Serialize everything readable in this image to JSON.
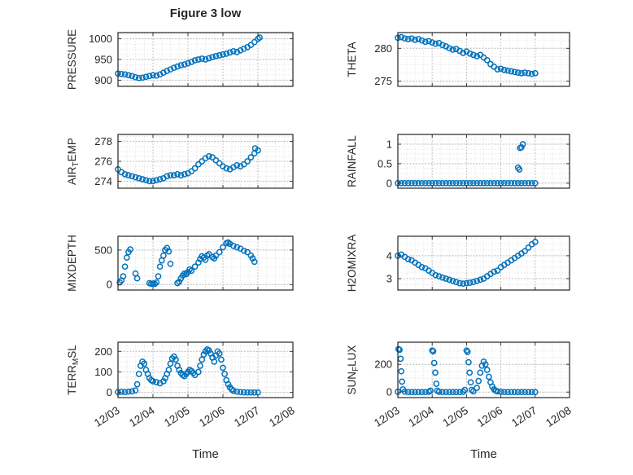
{
  "figure": {
    "title": "Figure 3 low",
    "xlabel": "Time",
    "marker_color": "#0072BD",
    "axes_color": "#262626",
    "x_tick_labels": [
      "12/03",
      "12/04",
      "12/05",
      "12/06",
      "12/07",
      "12/08"
    ],
    "xlim_days": [
      3,
      8
    ],
    "grid": "dotted major and minor, box on",
    "marker": "hollow circle"
  },
  "chart_data": [
    {
      "type": "scatter",
      "name": "PRESSURE",
      "ylabel": {
        "pre": "PRESSURE",
        "sub": "",
        "post": ""
      },
      "ylim": [
        885,
        1015
      ],
      "yticks": [
        900,
        950,
        1000
      ],
      "x_start": 3.0,
      "x_step": 0.1,
      "y": [
        916,
        915,
        914,
        912,
        910,
        907,
        905,
        906,
        908,
        910,
        912,
        911,
        914,
        918,
        922,
        926,
        930,
        933,
        936,
        938,
        941,
        944,
        948,
        950,
        952,
        950,
        953,
        956,
        958,
        960,
        962,
        964,
        967,
        970,
        968,
        972,
        976,
        980,
        985,
        992,
        1000
      ],
      "extra_points": [
        [
          7.05,
          1003
        ]
      ]
    },
    {
      "type": "scatter",
      "name": "THETA",
      "ylabel": {
        "pre": "THETA",
        "sub": "",
        "post": ""
      },
      "ylim": [
        274.2,
        282.4
      ],
      "yticks": [
        275,
        280
      ],
      "x_start": 3.0,
      "x_step": 0.1,
      "y": [
        281.6,
        281.7,
        281.5,
        281.4,
        281.5,
        281.3,
        281.4,
        281.2,
        281.0,
        281.1,
        280.9,
        280.7,
        280.8,
        280.5,
        280.3,
        280.0,
        279.8,
        279.9,
        279.6,
        279.3,
        279.5,
        279.2,
        279.0,
        278.8,
        279.0,
        278.6,
        278.2,
        277.6,
        277.2,
        276.8,
        276.9,
        276.7,
        276.6,
        276.5,
        276.4,
        276.3,
        276.2,
        276.3,
        276.2,
        276.1,
        276.2
      ]
    },
    {
      "type": "scatter",
      "name": "AIR_TEMP",
      "ylabel": {
        "pre": "AIR",
        "sub": "T",
        "post": "EMP"
      },
      "ylim": [
        273.3,
        278.7
      ],
      "yticks": [
        274,
        276,
        278
      ],
      "x_start": 3.0,
      "x_step": 0.1,
      "y": [
        275.2,
        274.9,
        274.7,
        274.6,
        274.5,
        274.4,
        274.3,
        274.2,
        274.1,
        274.0,
        274.0,
        274.1,
        274.2,
        274.3,
        274.5,
        274.6,
        274.6,
        274.7,
        274.6,
        274.7,
        274.8,
        275.0,
        275.3,
        275.7,
        276.0,
        276.3,
        276.5,
        276.4,
        276.1,
        275.8,
        275.5,
        275.3,
        275.2,
        275.4,
        275.6,
        275.5,
        275.7,
        276.0,
        276.4,
        276.8,
        277.1
      ],
      "extra_points": [
        [
          6.92,
          277.3
        ]
      ]
    },
    {
      "type": "scatter",
      "name": "RAINFALL",
      "ylabel": {
        "pre": "RAINFALL",
        "sub": "",
        "post": ""
      },
      "ylim": [
        -0.13,
        1.25
      ],
      "yticks": [
        0,
        0.5,
        1
      ],
      "x_start": 3.0,
      "x_step": 0.1,
      "y": [
        0,
        0,
        0,
        0,
        0,
        0,
        0,
        0,
        0,
        0,
        0,
        0,
        0,
        0,
        0,
        0,
        0,
        0,
        0,
        0,
        0,
        0,
        0,
        0,
        0,
        0,
        0,
        0,
        0,
        0,
        0,
        0,
        0,
        0,
        0,
        0,
        0,
        0,
        0,
        0,
        0
      ],
      "extra_points": [
        [
          6.5,
          0.4
        ],
        [
          6.54,
          0.35
        ],
        [
          6.56,
          0.9
        ],
        [
          6.6,
          0.92
        ],
        [
          6.64,
          1.0
        ]
      ]
    },
    {
      "type": "scatter",
      "name": "MIXDEPTH",
      "ylabel": {
        "pre": "MIXDEPTH",
        "sub": "",
        "post": ""
      },
      "ylim": [
        -80,
        700
      ],
      "yticks": [
        0,
        500
      ],
      "points": [
        [
          3.05,
          30
        ],
        [
          3.1,
          60
        ],
        [
          3.15,
          120
        ],
        [
          3.2,
          260
        ],
        [
          3.25,
          390
        ],
        [
          3.3,
          470
        ],
        [
          3.35,
          510
        ],
        [
          3.5,
          160
        ],
        [
          3.55,
          90
        ],
        [
          3.9,
          20
        ],
        [
          3.95,
          10
        ],
        [
          4.0,
          15
        ],
        [
          4.05,
          10
        ],
        [
          4.1,
          30
        ],
        [
          4.15,
          120
        ],
        [
          4.2,
          260
        ],
        [
          4.25,
          350
        ],
        [
          4.3,
          420
        ],
        [
          4.35,
          500
        ],
        [
          4.4,
          530
        ],
        [
          4.45,
          480
        ],
        [
          4.5,
          300
        ],
        [
          4.7,
          20
        ],
        [
          4.75,
          40
        ],
        [
          4.8,
          90
        ],
        [
          4.85,
          130
        ],
        [
          4.9,
          160
        ],
        [
          4.95,
          150
        ],
        [
          5.0,
          180
        ],
        [
          5.05,
          220
        ],
        [
          5.1,
          200
        ],
        [
          5.2,
          260
        ],
        [
          5.3,
          320
        ],
        [
          5.35,
          370
        ],
        [
          5.4,
          410
        ],
        [
          5.45,
          390
        ],
        [
          5.5,
          360
        ],
        [
          5.55,
          420
        ],
        [
          5.6,
          440
        ],
        [
          5.7,
          400
        ],
        [
          5.75,
          380
        ],
        [
          5.8,
          420
        ],
        [
          5.9,
          470
        ],
        [
          6.0,
          540
        ],
        [
          6.1,
          600
        ],
        [
          6.15,
          610
        ],
        [
          6.2,
          590
        ],
        [
          6.3,
          560
        ],
        [
          6.4,
          540
        ],
        [
          6.5,
          520
        ],
        [
          6.6,
          490
        ],
        [
          6.7,
          470
        ],
        [
          6.8,
          420
        ],
        [
          6.85,
          380
        ],
        [
          6.9,
          330
        ]
      ]
    },
    {
      "type": "scatter",
      "name": "H2OMIXRA",
      "ylabel": {
        "pre": "H2OMIXRA",
        "sub": "",
        "post": ""
      },
      "ylim": [
        2.5,
        4.85
      ],
      "yticks": [
        3,
        4
      ],
      "x_start": 3.0,
      "x_step": 0.1,
      "y": [
        4.0,
        4.05,
        3.95,
        3.85,
        3.8,
        3.7,
        3.6,
        3.5,
        3.45,
        3.35,
        3.25,
        3.15,
        3.1,
        3.05,
        3.0,
        2.95,
        2.9,
        2.85,
        2.8,
        2.78,
        2.8,
        2.82,
        2.85,
        2.9,
        2.95,
        3.0,
        3.1,
        3.2,
        3.3,
        3.35,
        3.5,
        3.6,
        3.7,
        3.8,
        3.9,
        4.0,
        4.1,
        4.2,
        4.35,
        4.5,
        4.6
      ]
    },
    {
      "type": "scatter",
      "name": "TERR_MSL",
      "ylabel": {
        "pre": "TERR",
        "sub": "M",
        "post": "SL"
      },
      "ylim": [
        -25,
        245
      ],
      "yticks": [
        0,
        100,
        200
      ],
      "points": [
        [
          3.0,
          2
        ],
        [
          3.1,
          3
        ],
        [
          3.2,
          2
        ],
        [
          3.3,
          4
        ],
        [
          3.4,
          5
        ],
        [
          3.5,
          10
        ],
        [
          3.55,
          40
        ],
        [
          3.6,
          90
        ],
        [
          3.65,
          130
        ],
        [
          3.7,
          150
        ],
        [
          3.75,
          140
        ],
        [
          3.8,
          110
        ],
        [
          3.85,
          90
        ],
        [
          3.9,
          70
        ],
        [
          3.95,
          60
        ],
        [
          4.0,
          55
        ],
        [
          4.1,
          50
        ],
        [
          4.2,
          45
        ],
        [
          4.3,
          55
        ],
        [
          4.35,
          70
        ],
        [
          4.4,
          90
        ],
        [
          4.45,
          110
        ],
        [
          4.5,
          140
        ],
        [
          4.55,
          165
        ],
        [
          4.6,
          175
        ],
        [
          4.65,
          160
        ],
        [
          4.7,
          130
        ],
        [
          4.75,
          110
        ],
        [
          4.8,
          95
        ],
        [
          4.85,
          85
        ],
        [
          4.9,
          80
        ],
        [
          4.95,
          90
        ],
        [
          5.0,
          100
        ],
        [
          5.05,
          110
        ],
        [
          5.1,
          105
        ],
        [
          5.15,
          95
        ],
        [
          5.2,
          85
        ],
        [
          5.3,
          100
        ],
        [
          5.35,
          130
        ],
        [
          5.4,
          160
        ],
        [
          5.45,
          185
        ],
        [
          5.5,
          200
        ],
        [
          5.55,
          210
        ],
        [
          5.6,
          205
        ],
        [
          5.65,
          190
        ],
        [
          5.7,
          170
        ],
        [
          5.75,
          150
        ],
        [
          5.8,
          180
        ],
        [
          5.85,
          200
        ],
        [
          5.9,
          190
        ],
        [
          5.95,
          160
        ],
        [
          6.0,
          120
        ],
        [
          6.05,
          90
        ],
        [
          6.1,
          60
        ],
        [
          6.15,
          40
        ],
        [
          6.2,
          25
        ],
        [
          6.25,
          15
        ],
        [
          6.3,
          8
        ],
        [
          6.4,
          4
        ],
        [
          6.5,
          2
        ],
        [
          6.6,
          1
        ],
        [
          6.7,
          0
        ],
        [
          6.8,
          0
        ],
        [
          6.9,
          0
        ],
        [
          7.0,
          0
        ]
      ]
    },
    {
      "type": "scatter",
      "name": "SUN_FLUX",
      "ylabel": {
        "pre": "SUN",
        "sub": "F",
        "post": "LUX"
      },
      "ylim": [
        -40,
        360
      ],
      "yticks": [
        0,
        200
      ],
      "points": [
        [
          3.0,
          2
        ],
        [
          3.02,
          310
        ],
        [
          3.05,
          305
        ],
        [
          3.08,
          240
        ],
        [
          3.1,
          150
        ],
        [
          3.12,
          75
        ],
        [
          3.15,
          20
        ],
        [
          3.2,
          3
        ],
        [
          3.3,
          0
        ],
        [
          3.4,
          0
        ],
        [
          3.5,
          0
        ],
        [
          3.6,
          0
        ],
        [
          3.7,
          0
        ],
        [
          3.8,
          0
        ],
        [
          3.9,
          2
        ],
        [
          3.95,
          10
        ],
        [
          4.0,
          300
        ],
        [
          4.03,
          295
        ],
        [
          4.06,
          210
        ],
        [
          4.09,
          140
        ],
        [
          4.12,
          60
        ],
        [
          4.15,
          10
        ],
        [
          4.2,
          2
        ],
        [
          4.3,
          0
        ],
        [
          4.4,
          0
        ],
        [
          4.5,
          0
        ],
        [
          4.6,
          0
        ],
        [
          4.7,
          0
        ],
        [
          4.8,
          0
        ],
        [
          4.9,
          2
        ],
        [
          4.95,
          15
        ],
        [
          5.0,
          300
        ],
        [
          5.03,
          290
        ],
        [
          5.06,
          215
        ],
        [
          5.09,
          140
        ],
        [
          5.12,
          70
        ],
        [
          5.15,
          15
        ],
        [
          5.2,
          5
        ],
        [
          5.3,
          30
        ],
        [
          5.35,
          80
        ],
        [
          5.4,
          140
        ],
        [
          5.45,
          190
        ],
        [
          5.5,
          220
        ],
        [
          5.55,
          200
        ],
        [
          5.6,
          160
        ],
        [
          5.65,
          110
        ],
        [
          5.7,
          70
        ],
        [
          5.75,
          40
        ],
        [
          5.8,
          20
        ],
        [
          5.85,
          10
        ],
        [
          5.9,
          5
        ],
        [
          6.0,
          2
        ],
        [
          6.1,
          0
        ],
        [
          6.2,
          0
        ],
        [
          6.3,
          0
        ],
        [
          6.4,
          0
        ],
        [
          6.5,
          0
        ],
        [
          6.6,
          0
        ],
        [
          6.7,
          0
        ],
        [
          6.8,
          0
        ],
        [
          6.9,
          0
        ],
        [
          7.0,
          0
        ]
      ]
    }
  ]
}
